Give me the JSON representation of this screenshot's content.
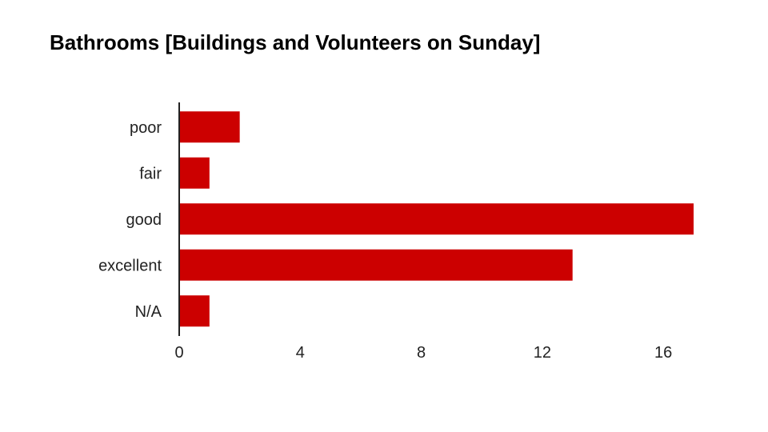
{
  "chart_data": {
    "type": "bar",
    "orientation": "horizontal",
    "title": "Bathrooms [Buildings and Volunteers on Sunday]",
    "xlabel": "",
    "ylabel": "",
    "categories": [
      "poor",
      "fair",
      "good",
      "excellent",
      "N/A"
    ],
    "values": [
      2,
      1,
      17,
      13,
      1
    ],
    "xlim": [
      0,
      17
    ],
    "xticks": [
      0,
      4,
      8,
      12,
      16
    ],
    "grid": false,
    "legend": "none",
    "bar_color": "#cc0000",
    "axis_color": "#222222"
  }
}
